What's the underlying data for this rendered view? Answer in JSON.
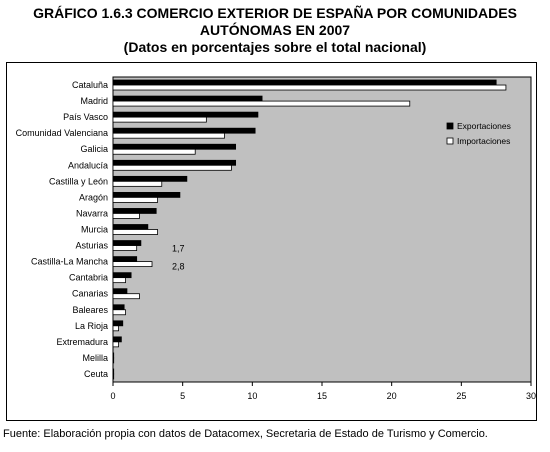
{
  "title_line1": "GRÁFICO 1.6.3 COMERCIO EXTERIOR DE ESPAÑA POR COMUNIDADES",
  "title_line2": "AUTÓNOMAS EN 2007",
  "subtitle": "(Datos en porcentajes sobre el total nacional)",
  "source": "Fuente: Elaboración propia con datos de Datacomex, Secretaria de Estado de Turismo y Comercio.",
  "chart_data": {
    "type": "bar",
    "orientation": "horizontal",
    "title": "GRÁFICO 1.6.3 COMERCIO EXTERIOR DE ESPAÑA POR COMUNIDADES AUTÓNOMAS EN 2007",
    "subtitle": "(Datos en porcentajes sobre el total nacional)",
    "categories": [
      "Cataluña",
      "Madrid",
      "País Vasco",
      "Comunidad Valenciana",
      "Galicia",
      "Andalucía",
      "Castilla y León",
      "Aragón",
      "Navarra",
      "Murcia",
      "Asturias",
      "Castilla-La Mancha",
      "Cantabria",
      "Canarias",
      "Baleares",
      "La Rioja",
      "Extremadura",
      "Melilla",
      "Ceuta"
    ],
    "series": [
      {
        "name": "Exportaciones",
        "color": "#000000",
        "values": [
          27.5,
          10.7,
          10.4,
          10.2,
          8.8,
          8.8,
          5.3,
          4.8,
          3.1,
          2.5,
          2.0,
          1.7,
          1.3,
          1.0,
          0.8,
          0.7,
          0.6,
          0.05,
          0.05
        ]
      },
      {
        "name": "Importaciones",
        "color": "#ffffff",
        "values": [
          28.2,
          21.3,
          6.7,
          8.0,
          5.9,
          8.5,
          3.5,
          3.2,
          1.9,
          3.2,
          1.7,
          2.8,
          0.9,
          1.9,
          0.9,
          0.4,
          0.4,
          0.05,
          0.05
        ]
      }
    ],
    "annotations": [
      {
        "category": "Asturias",
        "text": "1,7"
      },
      {
        "category": "Castilla-La Mancha",
        "text": "2,8"
      }
    ],
    "x_ticks": [
      "0",
      "5",
      "10",
      "15",
      "20",
      "25",
      "30"
    ],
    "xlim": [
      0,
      30
    ],
    "legend_position": "right",
    "plot_background": "#c0c0c0",
    "grid": false
  }
}
